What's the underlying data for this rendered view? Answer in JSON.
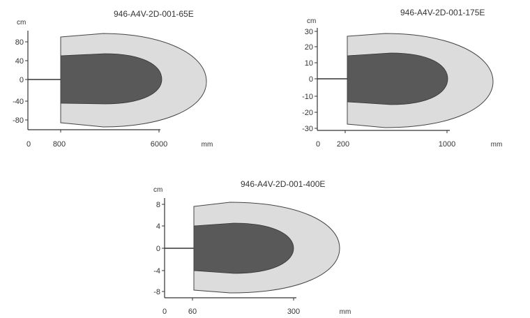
{
  "diagrams": [
    {
      "title": "946-A4V-2D-001-65E",
      "y_unit": "cm",
      "x_unit": "mm",
      "y_ticks": [
        "80",
        "40",
        "0",
        "-40",
        "-80"
      ],
      "x_ticks": [
        "0",
        "800",
        "6000"
      ]
    },
    {
      "title": "946-A4V-2D-001-175E",
      "y_unit": "cm",
      "x_unit": "mm",
      "y_ticks": [
        "30",
        "20",
        "10",
        "0",
        "-10",
        "-20",
        "-30"
      ],
      "x_ticks": [
        "0",
        "200",
        "1000"
      ]
    },
    {
      "title": "946-A4V-2D-001-400E",
      "y_unit": "cm",
      "x_unit": "mm",
      "y_ticks": [
        "8",
        "4",
        "0",
        "-4",
        "-8"
      ],
      "x_ticks": [
        "0",
        "60",
        "300"
      ]
    }
  ],
  "colors": {
    "outer_zone": "#dcdcdc",
    "inner_zone": "#595959",
    "lines": "#333333"
  }
}
